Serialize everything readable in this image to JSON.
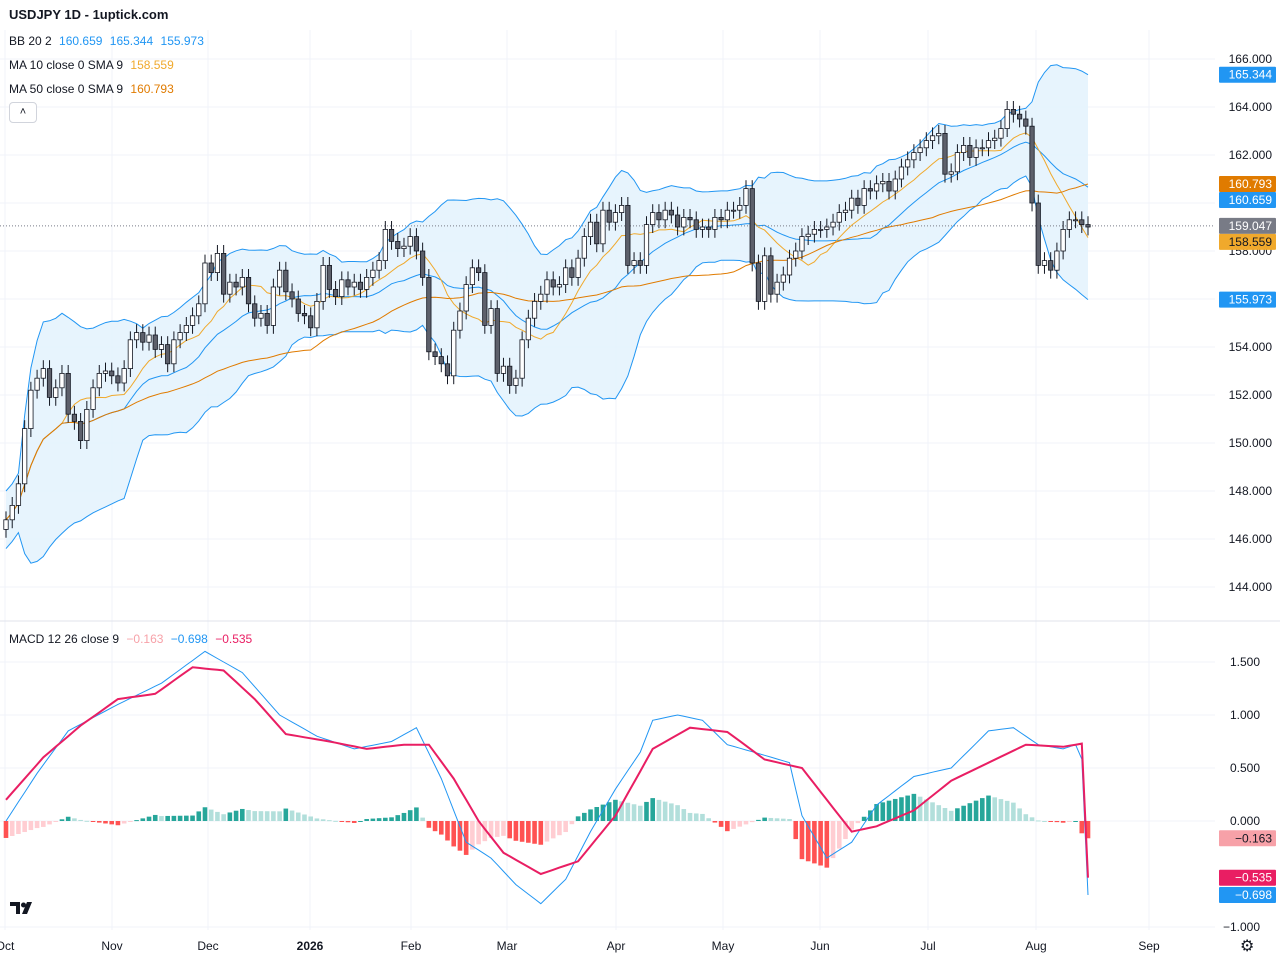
{
  "header": {
    "title": "USDJPY 1D - 1uptick.com",
    "bb": {
      "label": "BB 20 2",
      "v1": "160.659",
      "v2": "165.344",
      "v3": "155.973",
      "color": "#2196f3"
    },
    "ma10": {
      "label": "MA 10 close 0 SMA 9",
      "value": "158.559",
      "color": "#f0a92c"
    },
    "ma50": {
      "label": "MA 50 close 0 SMA 9",
      "value": "160.793",
      "color": "#e07b00"
    },
    "collapse_icon": "chevron-up-icon"
  },
  "macd_header": {
    "label": "MACD 12 26 close 9",
    "hist": "−0.163",
    "macd": "−0.698",
    "signal": "−0.535",
    "hist_color": "#f7a1a8",
    "macd_color": "#2196f3",
    "signal_color": "#e91e63"
  },
  "price_axis": {
    "ticks": [
      "166.000",
      "164.000",
      "162.000",
      "160.000",
      "158.000",
      "156.000",
      "154.000",
      "152.000",
      "150.000",
      "148.000",
      "146.000",
      "144.000"
    ]
  },
  "price_badges": [
    {
      "text": "165.344",
      "value": 165.344,
      "color": "#2196f3"
    },
    {
      "text": "160.793",
      "value": 160.793,
      "color": "#e07b00"
    },
    {
      "text": "160.659",
      "value": 160.659,
      "color": "#2196f3"
    },
    {
      "text": "159.047",
      "value": 159.047,
      "color": "#787b86"
    },
    {
      "text": "158.559",
      "value": 158.559,
      "color": "#f0a92c"
    },
    {
      "text": "155.973",
      "value": 155.973,
      "color": "#2196f3"
    }
  ],
  "macd_axis": {
    "ticks": [
      "1.500",
      "1.000",
      "0.500",
      "0.000",
      "−1.000"
    ]
  },
  "macd_badges": [
    {
      "text": "−0.163",
      "value": -0.163,
      "color": "#f7a1a8"
    },
    {
      "text": "−0.535",
      "value": -0.535,
      "color": "#e91e63"
    },
    {
      "text": "−0.698",
      "value": -0.698,
      "color": "#2196f3"
    }
  ],
  "time_axis": {
    "ticks": [
      "Oct",
      "Nov",
      "Dec",
      "2026",
      "Feb",
      "Mar",
      "Apr",
      "May",
      "Jun",
      "Jul",
      "Aug",
      "Sep"
    ]
  },
  "chart_data": [
    {
      "type": "candlestick",
      "title": "USDJPY 1D",
      "ylim": [
        143.5,
        167.0
      ],
      "last_close": 159.047,
      "indicators": [
        "BB 20 2",
        "MA 10 close 0 SMA 9",
        "MA 50 close 0 SMA 9"
      ],
      "close": [
        146.8,
        147.4,
        148.3,
        150.6,
        152.2,
        152.7,
        153.1,
        151.9,
        152.3,
        152.9,
        151.2,
        150.9,
        150.1,
        151.4,
        152.3,
        152.9,
        153.0,
        152.8,
        152.5,
        153.1,
        154.3,
        154.6,
        154.2,
        154.5,
        153.9,
        154.1,
        153.3,
        154.3,
        154.6,
        154.9,
        155.3,
        155.8,
        157.5,
        157.1,
        157.9,
        156.2,
        156.7,
        156.5,
        156.9,
        155.8,
        155.2,
        155.4,
        154.9,
        156.5,
        157.2,
        156.3,
        156.0,
        155.4,
        155.3,
        154.8,
        155.9,
        157.4,
        156.4,
        156.1,
        156.8,
        156.5,
        156.7,
        156.4,
        156.9,
        157.2,
        157.6,
        158.9,
        158.4,
        158.1,
        158.2,
        158.6,
        158.0,
        156.9,
        153.8,
        153.6,
        153.3,
        152.8,
        154.7,
        155.5,
        156.6,
        157.3,
        157.1,
        154.9,
        155.6,
        152.9,
        153.2,
        152.4,
        152.7,
        154.3,
        155.2,
        155.9,
        156.2,
        156.8,
        156.5,
        156.6,
        157.3,
        156.9,
        157.7,
        158.6,
        159.2,
        158.3,
        159.7,
        159.2,
        159.6,
        159.9,
        157.4,
        157.6,
        157.4,
        159.1,
        159.6,
        159.3,
        159.7,
        159.5,
        159.0,
        159.4,
        159.3,
        158.9,
        159.0,
        158.9,
        159.4,
        159.3,
        159.7,
        159.7,
        159.9,
        160.6,
        157.5,
        155.9,
        157.8,
        156.2,
        156.7,
        157.0,
        157.7,
        158.0,
        158.6,
        158.7,
        158.9,
        158.9,
        159.0,
        159.2,
        159.6,
        159.7,
        160.2,
        159.9,
        160.6,
        160.5,
        160.8,
        160.9,
        160.5,
        161.0,
        161.5,
        161.8,
        162.1,
        162.3,
        162.6,
        162.8,
        162.9,
        161.2,
        161.3,
        162.1,
        162.4,
        161.9,
        162.3,
        162.3,
        162.6,
        162.7,
        163.1,
        163.9,
        163.7,
        163.5,
        163.2,
        160.0,
        157.4,
        157.6,
        157.2,
        158.0,
        158.9,
        159.3,
        159.3,
        159.1,
        159.0
      ],
      "bb_upper_last": 165.344,
      "bb_basis_last": 160.659,
      "bb_lower_last": 155.973,
      "ma10_last": 158.559,
      "ma50_last": 160.793
    },
    {
      "type": "bar",
      "title": "MACD 12 26 close 9",
      "ylim": [
        -1.1,
        1.75
      ],
      "histogram_last": -0.163,
      "macd_last": -0.698,
      "signal_last": -0.535,
      "macd_key": [
        [
          0,
          0.0
        ],
        [
          5,
          0.45
        ],
        [
          10,
          0.85
        ],
        [
          18,
          1.1
        ],
        [
          25,
          1.3
        ],
        [
          32,
          1.6
        ],
        [
          38,
          1.4
        ],
        [
          44,
          1.0
        ],
        [
          50,
          0.8
        ],
        [
          56,
          0.68
        ],
        [
          62,
          0.75
        ],
        [
          66,
          0.88
        ],
        [
          70,
          0.4
        ],
        [
          74,
          -0.2
        ],
        [
          78,
          -0.35
        ],
        [
          82,
          -0.6
        ],
        [
          86,
          -0.78
        ],
        [
          90,
          -0.55
        ],
        [
          94,
          -0.1
        ],
        [
          98,
          0.3
        ],
        [
          102,
          0.65
        ],
        [
          104,
          0.95
        ],
        [
          108,
          1.0
        ],
        [
          112,
          0.95
        ],
        [
          116,
          0.72
        ],
        [
          122,
          0.62
        ],
        [
          126,
          0.55
        ],
        [
          128,
          0.05
        ],
        [
          132,
          -0.35
        ],
        [
          136,
          -0.2
        ],
        [
          140,
          0.15
        ],
        [
          146,
          0.42
        ],
        [
          152,
          0.5
        ],
        [
          158,
          0.85
        ],
        [
          162,
          0.88
        ],
        [
          166,
          0.72
        ],
        [
          170,
          0.68
        ],
        [
          172,
          0.72
        ],
        [
          174,
          0.45
        ],
        [
          176,
          -0.2
        ],
        [
          179,
          -0.6
        ],
        [
          183,
          -0.75
        ],
        [
          186,
          -0.7
        ]
      ],
      "signal_key": [
        [
          0,
          0.2
        ],
        [
          6,
          0.6
        ],
        [
          12,
          0.9
        ],
        [
          18,
          1.15
        ],
        [
          24,
          1.2
        ],
        [
          30,
          1.45
        ],
        [
          35,
          1.42
        ],
        [
          40,
          1.15
        ],
        [
          45,
          0.82
        ],
        [
          52,
          0.75
        ],
        [
          58,
          0.68
        ],
        [
          64,
          0.72
        ],
        [
          68,
          0.72
        ],
        [
          72,
          0.4
        ],
        [
          76,
          0.0
        ],
        [
          80,
          -0.3
        ],
        [
          86,
          -0.5
        ],
        [
          92,
          -0.38
        ],
        [
          98,
          0.05
        ],
        [
          104,
          0.68
        ],
        [
          110,
          0.88
        ],
        [
          116,
          0.84
        ],
        [
          122,
          0.58
        ],
        [
          128,
          0.5
        ],
        [
          132,
          0.2
        ],
        [
          136,
          -0.1
        ],
        [
          140,
          -0.05
        ],
        [
          146,
          0.1
        ],
        [
          152,
          0.38
        ],
        [
          158,
          0.55
        ],
        [
          164,
          0.72
        ],
        [
          170,
          0.7
        ],
        [
          175,
          0.75
        ],
        [
          178,
          0.4
        ],
        [
          182,
          -0.25
        ],
        [
          186,
          -0.55
        ]
      ]
    }
  ]
}
